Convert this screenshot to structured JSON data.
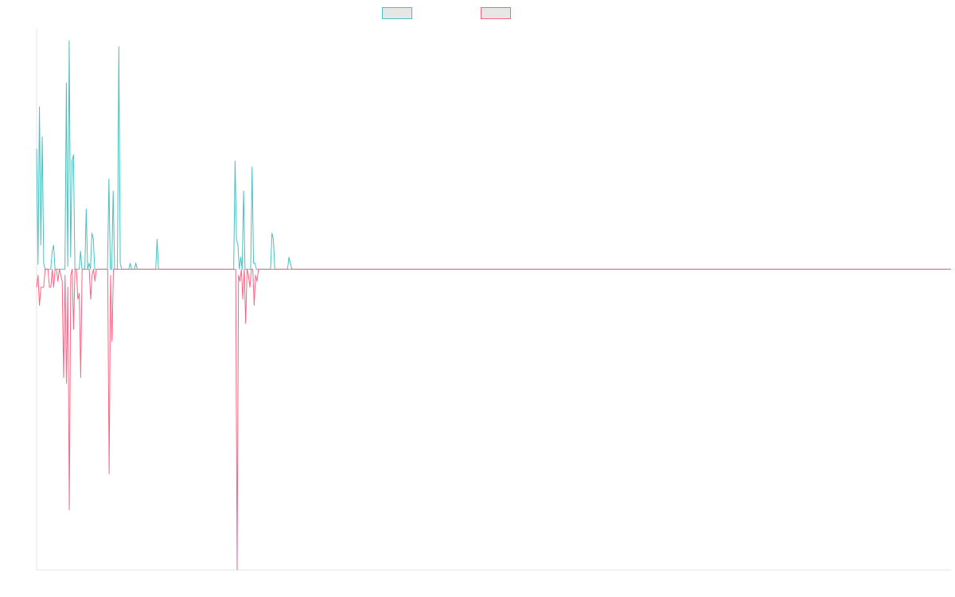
{
  "chart_data": {
    "type": "line",
    "grid": false,
    "legend_placement": "top-center",
    "colors": {
      "series_a": "#4bc0c0",
      "series_b": "#ff6384",
      "axis": "#e5e5e5",
      "swatch_fill": "#e6e6e6"
    },
    "ylim": [
      -50,
      40
    ],
    "series": [
      {
        "values": [
          20,
          0.8,
          27,
          4,
          22,
          1,
          0,
          0,
          0,
          0,
          0,
          3,
          4,
          0,
          0,
          0,
          0,
          0,
          0,
          0,
          0,
          31,
          0.5,
          38,
          2,
          18,
          19,
          0,
          0,
          0,
          0,
          3,
          0,
          0,
          0,
          10,
          0,
          1,
          0,
          6,
          5,
          0,
          0,
          0,
          0,
          0,
          0,
          0,
          0,
          0,
          0,
          15,
          0,
          0,
          13,
          0,
          0,
          0,
          37,
          1,
          0,
          0,
          0,
          0,
          0,
          0,
          1,
          0,
          0,
          0,
          1,
          0,
          0,
          0,
          0,
          0,
          0,
          0,
          0,
          0,
          0,
          0,
          0,
          0,
          0,
          5,
          0,
          0,
          0,
          0,
          0,
          0,
          0,
          0,
          0,
          0,
          0,
          0,
          0,
          0,
          0,
          0,
          0,
          0,
          0,
          0,
          0,
          0,
          0,
          0,
          0,
          0,
          0,
          0,
          0,
          0,
          0,
          0,
          0,
          0,
          0,
          0,
          0,
          0,
          0,
          0,
          0,
          0,
          0,
          0,
          0,
          0,
          0,
          0,
          0,
          0,
          0,
          0,
          0,
          0,
          18,
          5,
          4,
          0,
          2,
          0,
          13,
          0,
          0,
          0,
          0,
          0,
          17,
          1,
          1,
          0,
          0,
          0,
          0,
          0,
          0,
          0,
          0,
          0,
          0,
          0,
          6,
          5,
          0,
          0,
          0,
          0,
          0,
          0,
          0,
          0,
          0,
          0,
          2,
          1,
          0,
          0,
          0,
          0,
          0,
          0,
          0,
          0,
          0,
          0,
          0,
          0,
          0,
          0,
          0,
          0,
          0,
          0,
          0,
          0,
          0,
          0,
          0,
          0,
          0,
          0,
          0,
          0,
          0,
          0,
          0,
          0,
          0,
          0,
          0,
          0,
          0,
          0,
          0,
          0,
          0,
          0,
          0,
          0,
          0,
          0,
          0,
          0,
          0,
          0,
          0,
          0,
          0,
          0,
          0,
          0,
          0,
          0,
          0,
          0,
          0,
          0,
          0,
          0,
          0,
          0,
          0,
          0,
          0,
          0,
          0,
          0,
          0,
          0,
          0,
          0,
          0,
          0,
          0,
          0,
          0,
          0,
          0,
          0,
          0,
          0,
          0,
          0,
          0,
          0,
          0,
          0,
          0,
          0,
          0,
          0,
          0,
          0,
          0,
          0,
          0,
          0,
          0,
          0,
          0,
          0,
          0,
          0,
          0,
          0,
          0,
          0,
          0,
          0,
          0,
          0,
          0,
          0,
          0,
          0,
          0,
          0,
          0,
          0,
          0,
          0,
          0,
          0,
          0,
          0,
          0,
          0,
          0,
          0,
          0,
          0,
          0,
          0,
          0,
          0,
          0,
          0,
          0,
          0,
          0,
          0,
          0,
          0,
          0,
          0,
          0,
          0,
          0,
          0,
          0,
          0,
          0,
          0,
          0,
          0,
          0,
          0,
          0,
          0,
          0,
          0,
          0,
          0,
          0,
          0,
          0,
          0,
          0,
          0,
          0,
          0,
          0,
          0,
          0,
          0,
          0,
          0,
          0,
          0,
          0,
          0,
          0,
          0,
          0,
          0,
          0,
          0,
          0,
          0,
          0,
          0,
          0,
          0,
          0,
          0,
          0,
          0,
          0,
          0,
          0,
          0,
          0,
          0,
          0,
          0,
          0,
          0,
          0,
          0,
          0,
          0,
          0,
          0,
          0,
          0,
          0,
          0,
          0,
          0,
          0,
          0,
          0,
          0,
          0,
          0,
          0,
          0,
          0,
          0,
          0,
          0,
          0,
          0,
          0,
          0,
          0,
          0,
          0,
          0,
          0,
          0,
          0,
          0,
          0,
          0,
          0,
          0,
          0,
          0,
          0,
          0,
          0,
          0,
          0,
          0,
          0,
          0,
          0,
          0,
          0,
          0,
          0,
          0,
          0,
          0,
          0,
          0,
          0,
          0,
          0,
          0,
          0,
          0,
          0,
          0,
          0,
          0,
          0,
          0,
          0,
          0,
          0,
          0,
          0,
          0,
          0,
          0,
          0,
          0,
          0,
          0,
          0,
          0,
          0,
          0,
          0,
          0,
          0,
          0,
          0,
          0,
          0,
          0,
          0,
          0,
          0,
          0,
          0,
          0,
          0,
          0,
          0,
          0,
          0,
          0,
          0,
          0,
          0,
          0,
          0,
          0,
          0,
          0,
          0,
          0,
          0,
          0,
          0,
          0,
          0,
          0,
          0,
          0,
          0,
          0,
          0,
          0,
          0,
          0,
          0,
          0,
          0,
          0,
          0,
          0,
          0,
          0,
          0,
          0,
          0,
          0,
          0,
          0,
          0,
          0,
          0,
          0,
          0,
          0,
          0,
          0,
          0,
          0,
          0,
          0,
          0,
          0,
          0,
          0,
          0,
          0,
          0,
          0,
          0,
          0,
          0,
          0,
          0,
          0,
          0,
          0,
          0,
          0,
          0,
          0,
          0,
          0,
          0,
          0,
          0,
          0,
          0,
          0,
          0,
          0,
          0,
          0,
          0,
          0,
          0,
          0,
          0,
          0,
          0,
          0,
          0,
          0,
          0,
          0,
          0,
          0,
          0,
          0,
          0,
          0,
          0,
          0,
          0,
          0,
          0,
          0,
          0,
          0,
          0,
          0,
          0,
          0,
          0,
          0,
          0,
          0,
          0,
          0,
          0,
          0,
          0,
          0,
          0,
          0,
          0,
          0,
          0,
          0,
          0,
          0,
          0,
          0,
          0,
          0,
          0,
          0,
          0,
          0,
          0,
          0,
          0,
          0,
          0,
          0,
          0,
          0
        ]
      },
      {
        "values": [
          -3,
          -1,
          -6,
          -3,
          -3,
          -3,
          0,
          0,
          0,
          -3,
          -3,
          0,
          -3,
          0,
          0,
          -2,
          0,
          -1,
          -2,
          -18,
          -1,
          -19,
          -3,
          -40,
          -1,
          0,
          -10,
          0,
          0,
          -5,
          -4,
          -18,
          0,
          0,
          0,
          0,
          0,
          0,
          -5,
          -1,
          0,
          -2,
          0,
          0,
          0,
          0,
          0,
          0,
          0,
          0,
          0,
          -34,
          -1,
          -12,
          0,
          0,
          0,
          0,
          0,
          0,
          0,
          0,
          0,
          0,
          0,
          0,
          0,
          0,
          0,
          0,
          0,
          0,
          0,
          0,
          0,
          0,
          0,
          0,
          0,
          0,
          0,
          0,
          0,
          0,
          0,
          0,
          0,
          0,
          0,
          0,
          0,
          0,
          0,
          0,
          0,
          0,
          0,
          0,
          0,
          0,
          0,
          0,
          0,
          0,
          0,
          0,
          0,
          0,
          0,
          0,
          0,
          0,
          0,
          0,
          0,
          0,
          0,
          0,
          0,
          0,
          0,
          0,
          0,
          0,
          0,
          0,
          0,
          0,
          0,
          0,
          0,
          0,
          0,
          0,
          0,
          0,
          0,
          0,
          0,
          0,
          0,
          -50,
          -1,
          -2,
          0,
          -5,
          0,
          -9,
          0,
          -1,
          -3,
          0,
          0,
          -6,
          -1,
          -2,
          0,
          0,
          0,
          0,
          0,
          0,
          0,
          0,
          0,
          0,
          0,
          0,
          0,
          0,
          0,
          0,
          0,
          0,
          0,
          0,
          0,
          0,
          0,
          0,
          0,
          0,
          0,
          0,
          0,
          0,
          0,
          0,
          0,
          0,
          0,
          0,
          0,
          0,
          0,
          0,
          0,
          0,
          0,
          0,
          0,
          0,
          0,
          0,
          0,
          0,
          0,
          0,
          0,
          0,
          0,
          0,
          0,
          0,
          0,
          0,
          0,
          0,
          0,
          0,
          0,
          0,
          0,
          0,
          0,
          0,
          0,
          0,
          0,
          0,
          0,
          0,
          0,
          0,
          0,
          0,
          0,
          0,
          0,
          0,
          0,
          0,
          0,
          0,
          0,
          0,
          0,
          0,
          0,
          0,
          0,
          0,
          0,
          0,
          0,
          0,
          0,
          0,
          0,
          0,
          0,
          0,
          0,
          0,
          0,
          0,
          0,
          0,
          0,
          0,
          0,
          0,
          0,
          0,
          0,
          0,
          0,
          0,
          0,
          0,
          0,
          0,
          0,
          0,
          0,
          0,
          0,
          0,
          0,
          0,
          0,
          0,
          0,
          0,
          0,
          0,
          0,
          0,
          0,
          0,
          0,
          0,
          0,
          0,
          0,
          0,
          0,
          0,
          0,
          0,
          0,
          0,
          0,
          0,
          0,
          0,
          0,
          0,
          0,
          0,
          0,
          0,
          0,
          0,
          0,
          0,
          0,
          0,
          0,
          0,
          0,
          0,
          0,
          0,
          0,
          0,
          0,
          0,
          0,
          0,
          0,
          0,
          0,
          0,
          0,
          0,
          0,
          0,
          0,
          0,
          0,
          0,
          0,
          0,
          0,
          0,
          0,
          0,
          0,
          0,
          0,
          0,
          0,
          0,
          0,
          0,
          0,
          0,
          0,
          0,
          0,
          0,
          0,
          0,
          0,
          0,
          0,
          0,
          0,
          0,
          0,
          0,
          0,
          0,
          0,
          0,
          0,
          0,
          0,
          0,
          0,
          0,
          0,
          0,
          0,
          0,
          0,
          0,
          0,
          0,
          0,
          0,
          0,
          0,
          0,
          0,
          0,
          0,
          0,
          0,
          0,
          0,
          0,
          0,
          0,
          0,
          0,
          0,
          0,
          0,
          0,
          0,
          0,
          0,
          0,
          0,
          0,
          0,
          0,
          0,
          0,
          0,
          0,
          0,
          0,
          0,
          0,
          0,
          0,
          0,
          0,
          0,
          0,
          0,
          0,
          0,
          0,
          0,
          0,
          0,
          0,
          0,
          0,
          0,
          0,
          0,
          0,
          0,
          0,
          0,
          0,
          0,
          0,
          0,
          0,
          0,
          0,
          0,
          0,
          0,
          0,
          0,
          0,
          0,
          0,
          0,
          0,
          0,
          0,
          0,
          0,
          0,
          0,
          0,
          0,
          0,
          0,
          0,
          0,
          0,
          0,
          0,
          0,
          0,
          0,
          0,
          0,
          0,
          0,
          0,
          0,
          0,
          0,
          0,
          0,
          0,
          0,
          0,
          0,
          0,
          0,
          0,
          0,
          0,
          0,
          0,
          0,
          0,
          0,
          0,
          0,
          0,
          0,
          0,
          0,
          0,
          0,
          0,
          0,
          0,
          0,
          0,
          0,
          0,
          0,
          0,
          0,
          0,
          0,
          0,
          0,
          0,
          0,
          0,
          0,
          0,
          0,
          0,
          0,
          0,
          0,
          0,
          0,
          0,
          0,
          0,
          0,
          0,
          0,
          0,
          0,
          0,
          0,
          0,
          0,
          0,
          0,
          0,
          0,
          0,
          0,
          0,
          0,
          0,
          0,
          0,
          0,
          0,
          0,
          0,
          0,
          0,
          0,
          0,
          0,
          0,
          0,
          0,
          0,
          0,
          0,
          0,
          0,
          0,
          0,
          0,
          0,
          0,
          0,
          0,
          0,
          0,
          0,
          0,
          0,
          0,
          0,
          0,
          0,
          0,
          0,
          0,
          0,
          0,
          0,
          0,
          0,
          0,
          0,
          0,
          0,
          0,
          0,
          0,
          0,
          0,
          0,
          0,
          0,
          0,
          0,
          0,
          0,
          0,
          0,
          0,
          0,
          0,
          0,
          0,
          0,
          0,
          0,
          0
        ]
      }
    ]
  }
}
